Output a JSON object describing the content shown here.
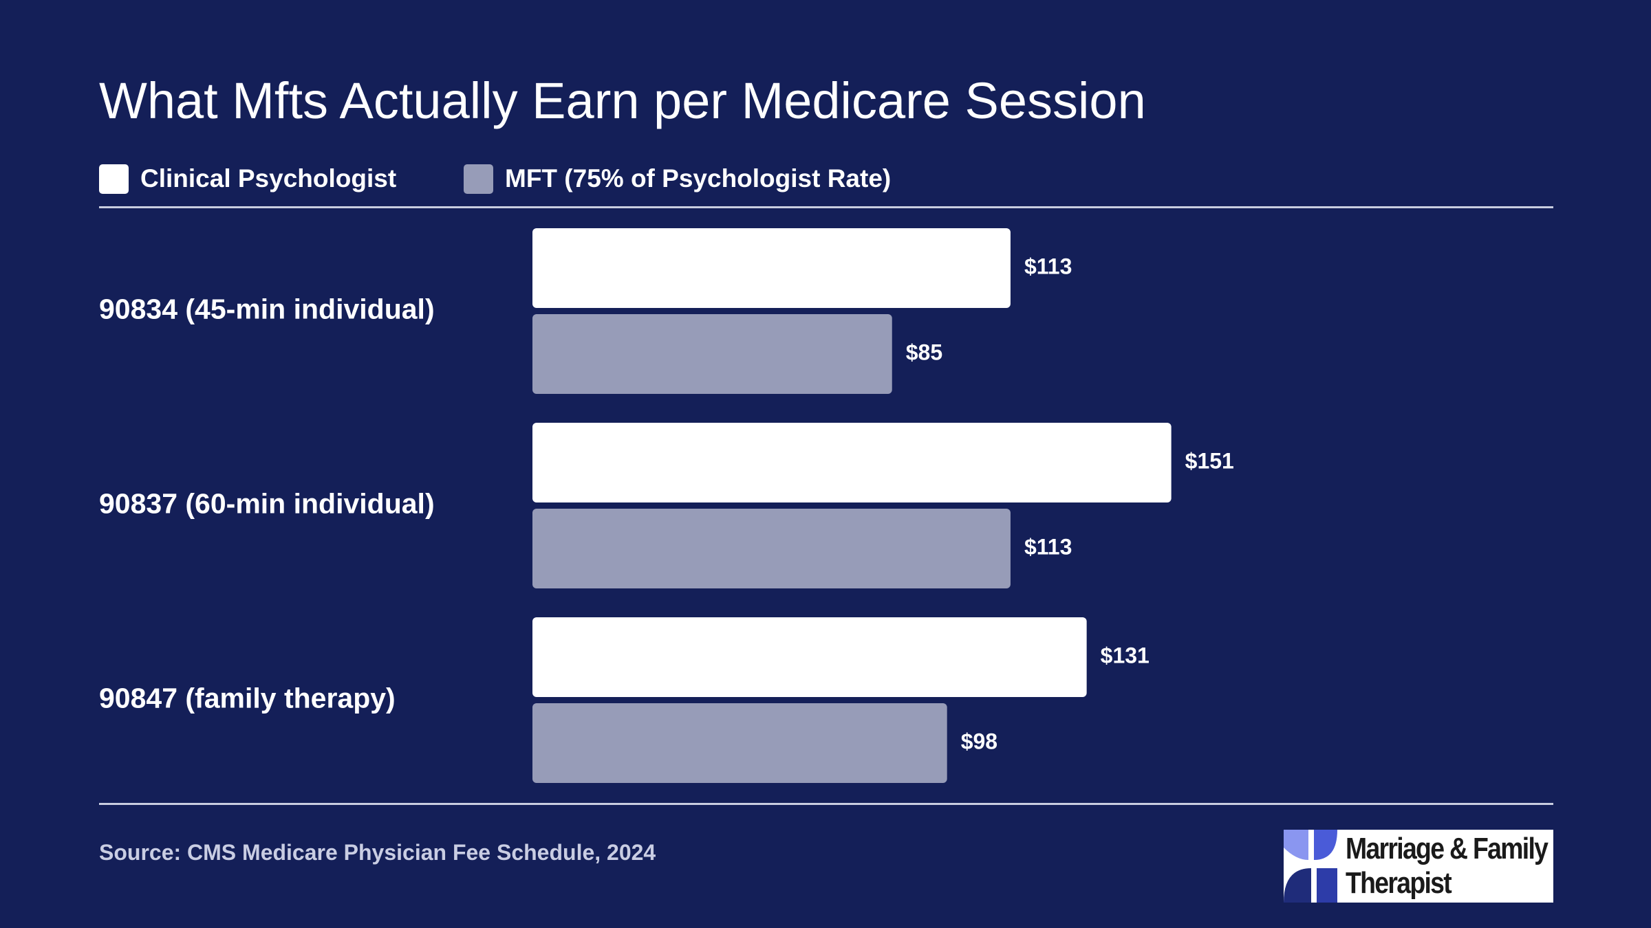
{
  "colors": {
    "background": "#141f58",
    "psychologist": "#ffffff",
    "mft": "#979cb8",
    "text": "#ffffff"
  },
  "chart_data": {
    "type": "bar",
    "orientation": "horizontal",
    "title": "What Mfts Actually Earn per Medicare Session",
    "categories": [
      "90834 (45-min individual)",
      "90837 (60-min individual)",
      "90847 (family therapy)"
    ],
    "series": [
      {
        "name": "Clinical Psychologist",
        "color": "#ffffff",
        "values": [
          113,
          151,
          131
        ],
        "labels": [
          "$113",
          "$151",
          "$131"
        ]
      },
      {
        "name": "MFT (75% of Psychologist Rate)",
        "color": "#979cb8",
        "values": [
          85,
          113,
          98
        ],
        "labels": [
          "$85",
          "$113",
          "$98"
        ]
      }
    ],
    "xlim": [
      0,
      160
    ],
    "grid": false,
    "legend_position": "top-left",
    "source": "Source: CMS Medicare Physician Fee Schedule, 2024"
  },
  "logo": {
    "line1": "Marriage & Family",
    "line2": "Therapist"
  }
}
